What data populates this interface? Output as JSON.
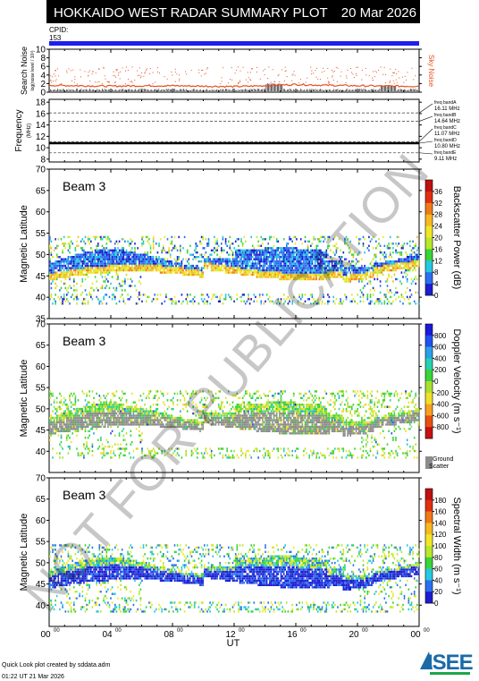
{
  "header": {
    "title": "HOKKAIDO WEST RADAR SUMMARY PLOT",
    "date": "20 Mar 2026",
    "cpid_label": "CPID:",
    "cpid_value": "153"
  },
  "colors": {
    "title_bg": "#000000",
    "title_fg": "#ffffff",
    "cpid_bar": "#1e1ef0",
    "noise_line": "#e8501e",
    "ground_scatter": "#8c8c8c"
  },
  "footer": {
    "line1": "Quick Look plot created by sddata.adm",
    "line2": "01:22 UT 21 Mar 2026",
    "logo_text": "ISEE"
  },
  "watermark": "NOT FOR PUBLICATION",
  "chart_data": [
    {
      "type": "scatter",
      "ylabel": "Search Noise",
      "ylabel_sub": "log(noise level / 10³)",
      "series_label": "Sky Noise",
      "ylim": [
        0,
        10
      ],
      "yticks": [
        0,
        2,
        4,
        6,
        8,
        10
      ],
      "x": [
        0,
        2,
        4,
        6,
        8,
        10,
        12,
        14,
        16,
        18,
        20,
        22,
        24
      ],
      "values": [
        1.6,
        1.5,
        1.4,
        1.5,
        1.5,
        1.4,
        1.3,
        1.5,
        1.8,
        1.6,
        1.5,
        1.4,
        1.4
      ]
    },
    {
      "type": "line",
      "ylabel": "Frequency",
      "ylabel_unit": "(MHz)",
      "ylim": [
        7.5,
        18.5
      ],
      "yticks": [
        8,
        10,
        12,
        14,
        16,
        18
      ],
      "bands": [
        {
          "label": "freq bandA",
          "freq": "16.11 MHz",
          "value": 16.11
        },
        {
          "label": "freq bandB",
          "freq": "14.64 MHz",
          "value": 14.64
        },
        {
          "label": "freq bandC",
          "freq": "11.07 MHz",
          "value": 11.07
        },
        {
          "label": "freq bandD",
          "freq": "10.80 MHz",
          "value": 10.8
        },
        {
          "label": "freq bandE",
          "freq": "9.11 MHz",
          "value": 9.11
        }
      ],
      "operating_frequency": 10.8
    },
    {
      "type": "heatmap",
      "beam_label": "Beam  3",
      "ylabel": "Magnetic Latitude",
      "ylim": [
        35,
        70
      ],
      "yticks": [
        35,
        40,
        45,
        50,
        55,
        60,
        65,
        70
      ],
      "colorbar_label": "Backscatter Power (dB)",
      "colorbar_ticks": [
        "0",
        "4",
        "8",
        "12",
        "16",
        "20",
        "24",
        "28",
        "32",
        "36"
      ],
      "colorbar_range": [
        0,
        40
      ],
      "scale": "power"
    },
    {
      "type": "heatmap",
      "beam_label": "Beam  3",
      "ylabel": "Magnetic Latitude",
      "ylim": [
        35,
        70
      ],
      "yticks": [
        40,
        45,
        50,
        55,
        60,
        65,
        70
      ],
      "colorbar_label": "Doppler Velocity (m s⁻¹)",
      "colorbar_ticks": [
        "800",
        "600",
        "400",
        "200",
        "0",
        "-200",
        "-400",
        "-600",
        "-800"
      ],
      "colorbar_range": [
        -1000,
        1000
      ],
      "scale": "velocity",
      "gs_label_1": "Ground",
      "gs_label_2": "Scatter"
    },
    {
      "type": "heatmap",
      "beam_label": "Beam  3",
      "ylabel": "Magnetic Latitude",
      "ylim": [
        35,
        70
      ],
      "yticks": [
        40,
        45,
        50,
        55,
        60,
        65,
        70
      ],
      "colorbar_label": "Spectral Width (m s⁻¹)",
      "colorbar_ticks": [
        "0",
        "20",
        "40",
        "60",
        "80",
        "100",
        "120",
        "140",
        "160",
        "180"
      ],
      "colorbar_range": [
        0,
        200
      ],
      "scale": "width"
    }
  ],
  "xaxis": {
    "label": "UT",
    "range": [
      0,
      24
    ],
    "ticks": [
      {
        "h": "00",
        "m": "00"
      },
      {
        "h": "04",
        "m": "00"
      },
      {
        "h": "08",
        "m": "00"
      },
      {
        "h": "12",
        "m": "00"
      },
      {
        "h": "16",
        "m": "00"
      },
      {
        "h": "20",
        "m": "00"
      },
      {
        "h": "00",
        "m": "00"
      }
    ]
  }
}
